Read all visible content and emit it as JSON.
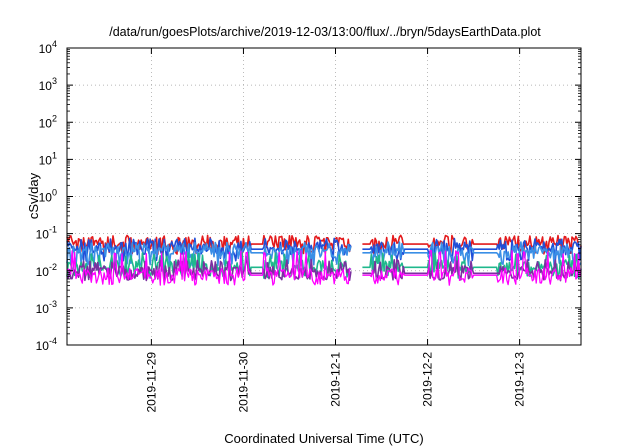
{
  "chart_data": {
    "type": "line",
    "title": "/data/run/goesPlots/archive/2019-12-03/13:00/flux/../bryn/5daysEarthData.plot",
    "xlabel": "Coordinated Universal Time (UTC)",
    "ylabel": "cSv/day",
    "yscale": "log",
    "ylim": [
      0.0001,
      10000
    ],
    "y_ticks": [
      {
        "value": 0.0001,
        "base": "10",
        "exp": "-4"
      },
      {
        "value": 0.001,
        "base": "10",
        "exp": "-3"
      },
      {
        "value": 0.01,
        "base": "10",
        "exp": "-2"
      },
      {
        "value": 0.1,
        "base": "10",
        "exp": "-1"
      },
      {
        "value": 1,
        "base": "10",
        "exp": "0"
      },
      {
        "value": 10,
        "base": "10",
        "exp": "1"
      },
      {
        "value": 100,
        "base": "10",
        "exp": "2"
      },
      {
        "value": 1000,
        "base": "10",
        "exp": "3"
      },
      {
        "value": 10000,
        "base": "10",
        "exp": "4"
      }
    ],
    "xlim": [
      "2019-11-28 02:00",
      "2019-12-03 16:00"
    ],
    "x_ticks": [
      {
        "date": "2019-11-29 00:00",
        "label": "2019-11-29"
      },
      {
        "date": "2019-11-30 00:00",
        "label": "2019-11-30"
      },
      {
        "date": "2019-12-01 00:00",
        "label": "2019-12-1"
      },
      {
        "date": "2019-12-02 00:00",
        "label": "2019-12-2"
      },
      {
        "date": "2019-12-03 00:00",
        "label": "2019-12-3"
      }
    ],
    "grid": true,
    "legend": "none",
    "series": [
      {
        "color": "#e41a1c",
        "typical": 0.055,
        "low": 0.03,
        "high": 0.09
      },
      {
        "color": "#1f4fd8",
        "typical": 0.04,
        "low": 0.02,
        "high": 0.075
      },
      {
        "color": "#3a8fe6",
        "typical": 0.032,
        "low": 0.015,
        "high": 0.06
      },
      {
        "color": "#1fb88c",
        "typical": 0.013,
        "low": 0.007,
        "high": 0.03
      },
      {
        "color": "#7b2fa0",
        "typical": 0.009,
        "low": 0.006,
        "high": 0.02
      },
      {
        "color": "#ff00ff",
        "typical": 0.008,
        "low": 0.0045,
        "high": 0.035
      }
    ],
    "flat_segments": [
      [
        "2019-11-30 02:00",
        "2019-11-30 05:00"
      ],
      [
        "2019-12-01 07:00",
        "2019-12-01 09:00"
      ],
      [
        "2019-12-01 18:00",
        "2019-12-02 00:00"
      ],
      [
        "2019-12-02 12:00",
        "2019-12-02 18:00"
      ]
    ],
    "gap": [
      "2019-12-01 04:00",
      "2019-12-01 07:00"
    ]
  }
}
